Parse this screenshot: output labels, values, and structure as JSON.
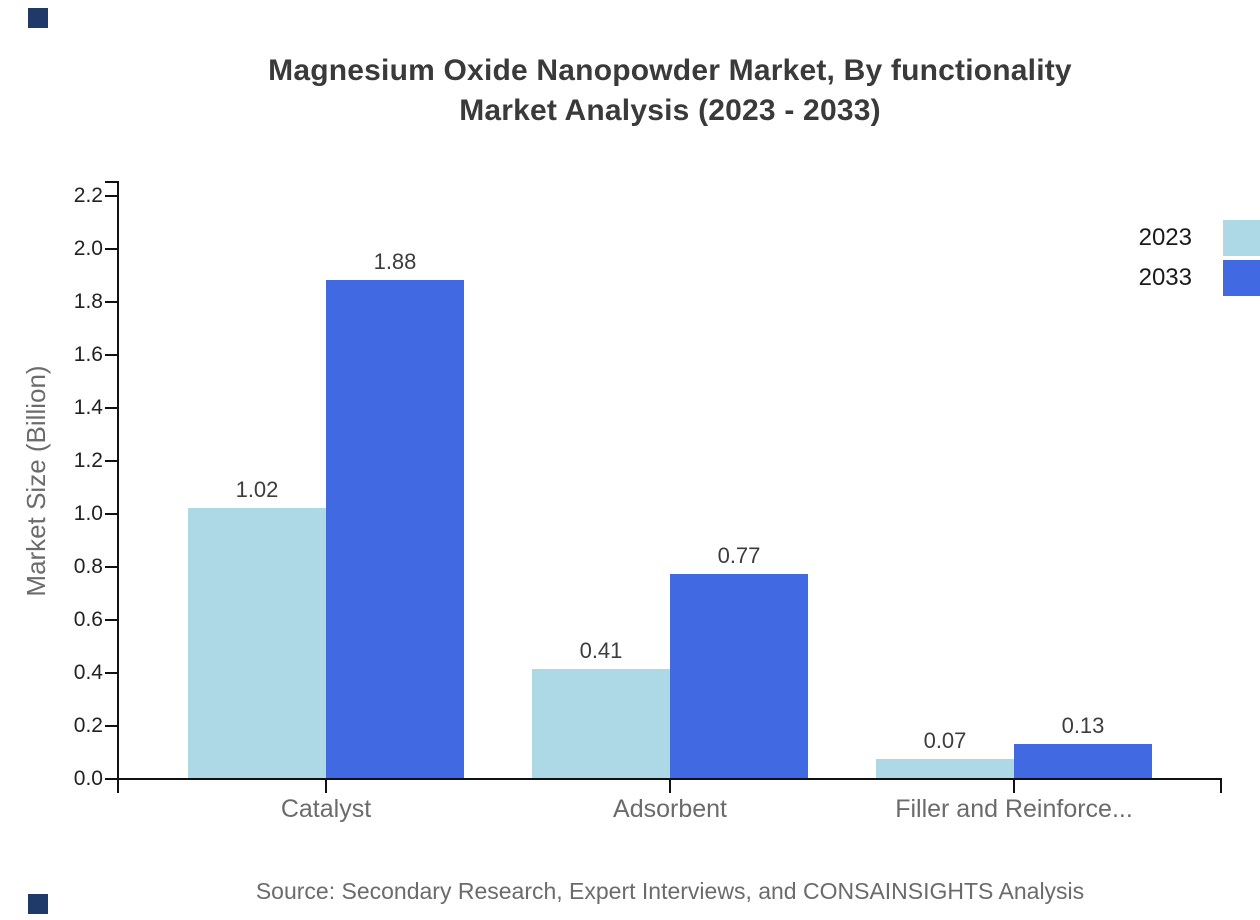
{
  "title": {
    "line1": "Magnesium Oxide Nanopowder Market, By functionality",
    "line2": "Market Analysis (2023 - 2033)"
  },
  "source": {
    "text": "Source: Secondary Research, Expert Interviews, and CONSAINSIGHTS Analysis"
  },
  "colors": {
    "series_2023": "#add8e6",
    "series_2033": "#4169e1",
    "axis": "#111111",
    "tick_label": "#222222",
    "muted_text": "#6b6b6b",
    "title_text": "#3a3a3a",
    "brand_corner": "#1f3a68"
  },
  "legend": {
    "items": [
      {
        "label": "2023",
        "color": "#add8e6"
      },
      {
        "label": "2033",
        "color": "#4169e1"
      }
    ]
  },
  "chart_data": {
    "type": "bar",
    "title": "Magnesium Oxide Nanopowder Market, By functionality Market Analysis (2023 - 2033)",
    "categories": [
      "Catalyst",
      "Adsorbent",
      "Filler and Reinforce..."
    ],
    "series": [
      {
        "name": "2023",
        "color": "#add8e6",
        "values": [
          1.02,
          0.41,
          0.07
        ]
      },
      {
        "name": "2033",
        "color": "#4169e1",
        "values": [
          1.88,
          0.77,
          0.13
        ]
      }
    ],
    "data_labels": [
      "1.02",
      "1.88",
      "0.41",
      "0.77",
      "0.07",
      "0.13"
    ],
    "xlabel": "",
    "ylabel": "Market Size (Billion)",
    "ylim": [
      0,
      2.2
    ],
    "y_ticks": [
      "0.0",
      "0.2",
      "0.4",
      "0.6",
      "0.8",
      "1.0",
      "1.2",
      "1.4",
      "1.6",
      "1.8",
      "2.0",
      "2.2"
    ],
    "grid": false,
    "legend_position": "top-right",
    "bar_value_labels_shown": true
  }
}
